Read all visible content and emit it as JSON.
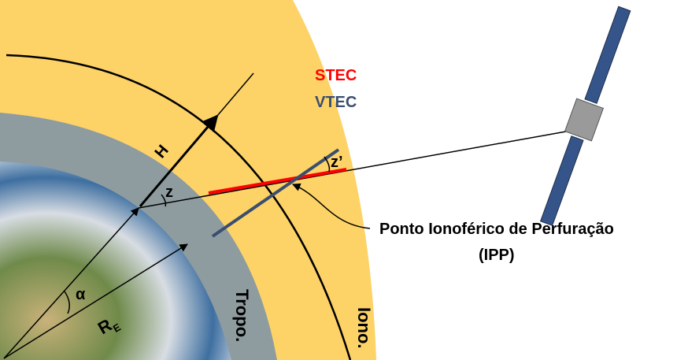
{
  "labels": {
    "stec": "STEC",
    "vtec": "VTEC",
    "h": "H",
    "z": "z",
    "z_prime": "z’",
    "ipp_name": "Ponto Ionoférico de Perfuração",
    "ipp_abbr": "(IPP)",
    "alpha": "α",
    "earth_radius": "R",
    "earth_radius_sub": "E",
    "tropo": "Tropo.",
    "iono": "Iono."
  }
}
